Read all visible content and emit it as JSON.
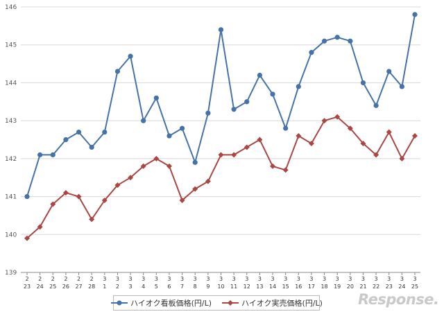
{
  "chart_data": {
    "type": "line",
    "title": "",
    "xlabel": "",
    "ylabel": "",
    "ylim": [
      139,
      146
    ],
    "yticks": [
      139,
      140,
      141,
      142,
      143,
      144,
      145,
      146
    ],
    "grid": true,
    "legend_position": "bottom",
    "categories": [
      {
        "month": "2",
        "day": "23"
      },
      {
        "month": "2",
        "day": "24"
      },
      {
        "month": "2",
        "day": "25"
      },
      {
        "month": "2",
        "day": "26"
      },
      {
        "month": "2",
        "day": "27"
      },
      {
        "month": "2",
        "day": "28"
      },
      {
        "month": "3",
        "day": "1"
      },
      {
        "month": "3",
        "day": "2"
      },
      {
        "month": "3",
        "day": "3"
      },
      {
        "month": "3",
        "day": "4"
      },
      {
        "month": "3",
        "day": "5"
      },
      {
        "month": "3",
        "day": "6"
      },
      {
        "month": "3",
        "day": "7"
      },
      {
        "month": "3",
        "day": "8"
      },
      {
        "month": "3",
        "day": "9"
      },
      {
        "month": "3",
        "day": "10"
      },
      {
        "month": "3",
        "day": "11"
      },
      {
        "month": "3",
        "day": "12"
      },
      {
        "month": "3",
        "day": "13"
      },
      {
        "month": "3",
        "day": "14"
      },
      {
        "month": "3",
        "day": "15"
      },
      {
        "month": "3",
        "day": "16"
      },
      {
        "month": "3",
        "day": "17"
      },
      {
        "month": "3",
        "day": "18"
      },
      {
        "month": "3",
        "day": "19"
      },
      {
        "month": "3",
        "day": "20"
      },
      {
        "month": "3",
        "day": "21"
      },
      {
        "month": "3",
        "day": "22"
      },
      {
        "month": "3",
        "day": "23"
      },
      {
        "month": "3",
        "day": "24"
      },
      {
        "month": "3",
        "day": "25"
      }
    ],
    "series": [
      {
        "name": "ハイオク看板価格(円/L)",
        "color": "#4572a7",
        "marker": "circle",
        "values": [
          141.0,
          142.1,
          142.1,
          142.5,
          142.7,
          142.3,
          142.7,
          144.3,
          144.7,
          143.0,
          143.6,
          142.6,
          142.8,
          141.9,
          143.2,
          145.4,
          143.3,
          143.5,
          144.2,
          143.7,
          142.8,
          143.9,
          144.8,
          145.1,
          145.2,
          145.1,
          144.0,
          143.4,
          144.3,
          143.9,
          145.8
        ]
      },
      {
        "name": "ハイオク実売価格(円/L)",
        "color": "#aa4643",
        "marker": "diamond",
        "values": [
          139.9,
          140.2,
          140.8,
          141.1,
          141.0,
          140.4,
          140.9,
          141.3,
          141.5,
          141.8,
          142.0,
          141.8,
          140.9,
          141.2,
          141.4,
          142.1,
          142.1,
          142.3,
          142.5,
          141.8,
          141.7,
          142.6,
          142.4,
          143.0,
          143.1,
          142.8,
          142.4,
          142.1,
          142.7,
          142.0,
          142.6
        ]
      }
    ]
  },
  "watermark": "Response."
}
